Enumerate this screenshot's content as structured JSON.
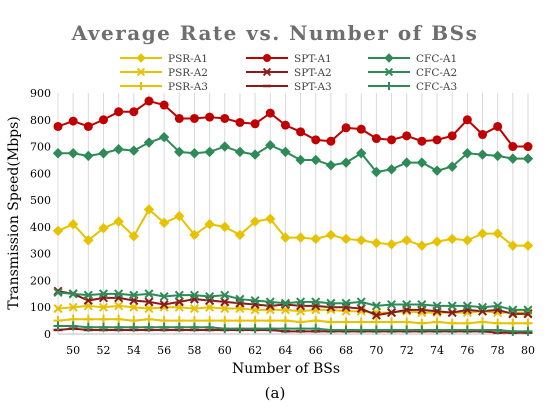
{
  "chart_data": {
    "type": "line",
    "title": "Average Rate vs. Number of BSs",
    "xlabel": "Number of BSs",
    "ylabel": "Transmission Speed(Mbps)",
    "x": [
      49,
      50,
      51,
      52,
      53,
      54,
      55,
      56,
      57,
      58,
      59,
      60,
      61,
      62,
      63,
      64,
      65,
      66,
      67,
      68,
      69,
      70,
      71,
      72,
      73,
      74,
      75,
      76,
      77,
      78,
      79,
      80
    ],
    "xticks": [
      50,
      52,
      54,
      56,
      58,
      60,
      62,
      64,
      66,
      68,
      70,
      72,
      74,
      76,
      78,
      80
    ],
    "xlim": [
      49,
      80
    ],
    "ylim": [
      0,
      900
    ],
    "yticks": [
      0,
      100,
      200,
      300,
      400,
      500,
      600,
      700,
      800,
      900
    ],
    "grid": "vertical",
    "legend_position": "top",
    "series": [
      {
        "name": "PSR-A1",
        "color": "#e6c200",
        "marker": "diamond",
        "values": [
          385,
          410,
          350,
          395,
          420,
          365,
          465,
          415,
          440,
          370,
          410,
          400,
          370,
          420,
          430,
          360,
          360,
          355,
          370,
          355,
          350,
          340,
          335,
          350,
          330,
          345,
          355,
          350,
          375,
          375,
          330,
          330
        ]
      },
      {
        "name": "SPT-A1",
        "color": "#c00000",
        "marker": "circle",
        "values": [
          775,
          795,
          775,
          800,
          830,
          830,
          870,
          855,
          805,
          805,
          810,
          805,
          790,
          785,
          825,
          780,
          755,
          725,
          720,
          770,
          765,
          730,
          725,
          740,
          720,
          725,
          740,
          800,
          745,
          775,
          700,
          700
        ]
      },
      {
        "name": "CFC-A1",
        "color": "#2e8b57",
        "marker": "diamond",
        "values": [
          675,
          675,
          665,
          675,
          690,
          685,
          715,
          735,
          680,
          675,
          680,
          700,
          680,
          670,
          705,
          680,
          650,
          650,
          630,
          640,
          675,
          605,
          615,
          640,
          640,
          610,
          625,
          675,
          670,
          665,
          655,
          655
        ]
      },
      {
        "name": "PSR-A2",
        "color": "#e6c200",
        "marker": "x",
        "values": [
          95,
          100,
          105,
          100,
          105,
          100,
          95,
          100,
          100,
          95,
          100,
          95,
          95,
          90,
          90,
          90,
          85,
          90,
          90,
          85,
          85,
          80,
          80,
          85,
          80,
          80,
          80,
          80,
          85,
          80,
          80,
          80
        ]
      },
      {
        "name": "SPT-A2",
        "color": "#8b1a1a",
        "marker": "x",
        "values": [
          160,
          150,
          125,
          135,
          135,
          125,
          120,
          110,
          120,
          130,
          125,
          120,
          115,
          110,
          105,
          110,
          105,
          105,
          100,
          100,
          95,
          70,
          80,
          90,
          90,
          85,
          80,
          90,
          85,
          90,
          75,
          75
        ]
      },
      {
        "name": "CFC-A2",
        "color": "#2e8b57",
        "marker": "x",
        "values": [
          155,
          150,
          145,
          150,
          150,
          145,
          150,
          140,
          145,
          145,
          140,
          145,
          130,
          125,
          120,
          115,
          120,
          120,
          115,
          115,
          120,
          105,
          110,
          110,
          110,
          105,
          105,
          105,
          100,
          105,
          90,
          90
        ]
      },
      {
        "name": "PSR-A3",
        "color": "#e6c200",
        "marker": "plus",
        "values": [
          50,
          55,
          55,
          55,
          55,
          50,
          55,
          50,
          50,
          50,
          50,
          50,
          50,
          50,
          50,
          50,
          45,
          50,
          45,
          45,
          45,
          45,
          45,
          45,
          40,
          45,
          40,
          40,
          45,
          40,
          40,
          40
        ]
      },
      {
        "name": "SPT-A3",
        "color": "#8b1a1a",
        "marker": "dash",
        "values": [
          15,
          20,
          15,
          15,
          15,
          15,
          15,
          15,
          15,
          15,
          15,
          15,
          15,
          15,
          15,
          10,
          10,
          10,
          10,
          10,
          10,
          10,
          10,
          10,
          10,
          10,
          10,
          10,
          10,
          5,
          5,
          5
        ]
      },
      {
        "name": "CFC-A3",
        "color": "#2e8b57",
        "marker": "plus",
        "values": [
          30,
          30,
          25,
          25,
          25,
          25,
          25,
          25,
          25,
          25,
          25,
          20,
          20,
          20,
          20,
          20,
          20,
          20,
          15,
          15,
          15,
          15,
          15,
          15,
          15,
          15,
          15,
          15,
          15,
          15,
          10,
          10
        ]
      }
    ]
  },
  "caption": "(a)"
}
